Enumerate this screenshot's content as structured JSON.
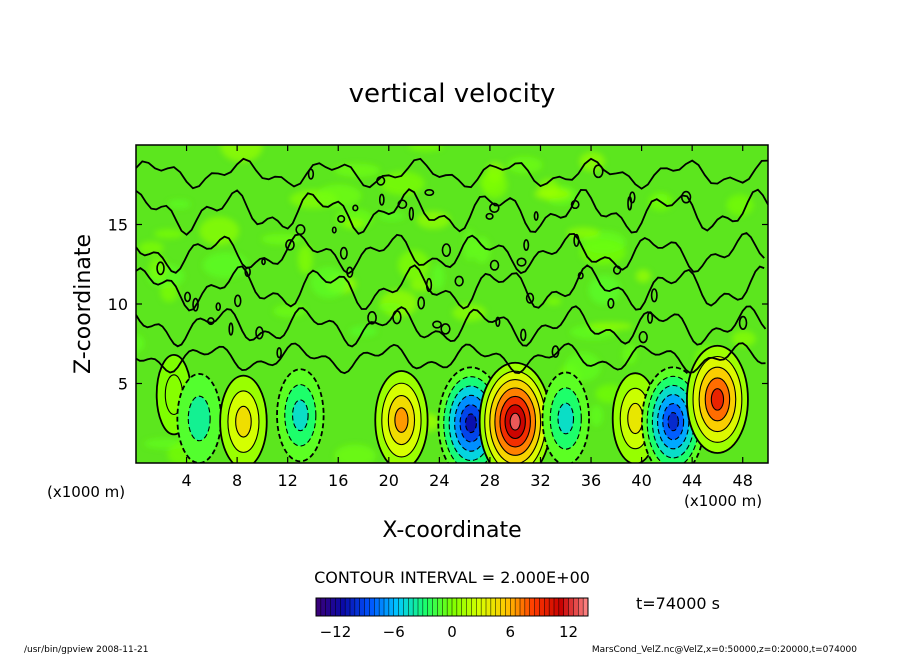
{
  "chart_data": {
    "type": "heatmap",
    "title": "vertical velocity",
    "xlabel": "X-coordinate",
    "ylabel": "Z-coordinate",
    "x_unit_left": "(x1000 m)",
    "x_unit_right": "(x1000 m)",
    "xlim": [
      0,
      50
    ],
    "ylim": [
      0,
      20
    ],
    "x_ticks": [
      4,
      8,
      12,
      16,
      20,
      24,
      28,
      32,
      36,
      40,
      44,
      48
    ],
    "y_ticks": [
      5,
      10,
      15
    ],
    "contour_interval_label": "CONTOUR INTERVAL = 2.000E+00",
    "time_label": "t=74000 s",
    "colorbar": {
      "range": [
        -14,
        14
      ],
      "ticks": [
        -12,
        -6,
        0,
        6,
        12
      ],
      "tick_labels": [
        "−12",
        "−6",
        "0",
        "6",
        "12"
      ],
      "colors": [
        "#3d0075",
        "#0a0aa8",
        "#0055ff",
        "#00c8ff",
        "#19ff6e",
        "#7cff00",
        "#d7ff00",
        "#ffc800",
        "#ff3a00",
        "#c80000",
        "#ff8a8a"
      ]
    },
    "cells": [
      {
        "x": 3,
        "z": 4.3,
        "w": 0.3
      },
      {
        "x": 5,
        "z": 2.8,
        "w": -3.5
      },
      {
        "x": 8.5,
        "z": 2.6,
        "w": 4.5
      },
      {
        "x": 13,
        "z": 3,
        "w": -4.5
      },
      {
        "x": 21,
        "z": 2.7,
        "w": 6.5
      },
      {
        "x": 26.5,
        "z": 2.5,
        "w": -11
      },
      {
        "x": 30,
        "z": 2.6,
        "w": 13
      },
      {
        "x": 34,
        "z": 2.8,
        "w": -4.5
      },
      {
        "x": 39.5,
        "z": 2.8,
        "w": 4
      },
      {
        "x": 42.5,
        "z": 2.6,
        "w": -10
      },
      {
        "x": 46,
        "z": 4,
        "w": 9.5
      }
    ]
  },
  "footer": {
    "left": "/usr/bin/gpview   2008-11-21",
    "right": "MarsCond_VelZ.nc@VelZ,x=0:50000,z=0:20000,t=074000"
  }
}
